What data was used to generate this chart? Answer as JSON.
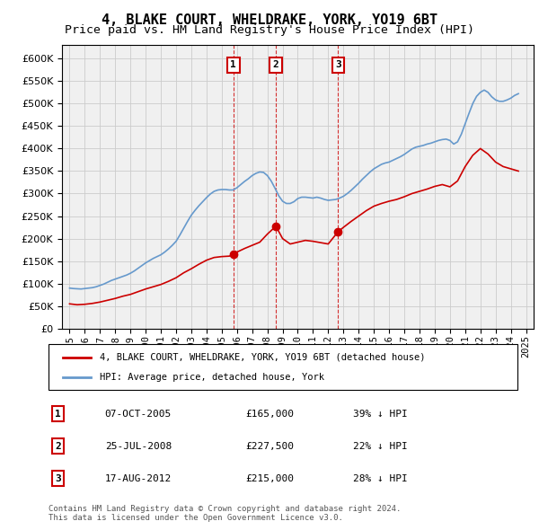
{
  "title": "4, BLAKE COURT, WHELDRAKE, YORK, YO19 6BT",
  "subtitle": "Price paid vs. HM Land Registry's House Price Index (HPI)",
  "title_fontsize": 11,
  "subtitle_fontsize": 9.5,
  "property_label": "4, BLAKE COURT, WHELDRAKE, YORK, YO19 6BT (detached house)",
  "hpi_label": "HPI: Average price, detached house, York",
  "property_color": "#cc0000",
  "hpi_color": "#6699cc",
  "background_color": "#ffffff",
  "grid_color": "#cccccc",
  "xlim_start": 1994.5,
  "xlim_end": 2025.5,
  "ylim_min": 0,
  "ylim_max": 630000,
  "transactions": [
    {
      "num": 1,
      "date": "07-OCT-2005",
      "year": 2005.77,
      "price": 165000,
      "pct": "39%",
      "dir": "↓"
    },
    {
      "num": 2,
      "date": "25-JUL-2008",
      "year": 2008.56,
      "price": 227500,
      "pct": "22%",
      "dir": "↓"
    },
    {
      "num": 3,
      "date": "17-AUG-2012",
      "year": 2012.64,
      "price": 215000,
      "pct": "28%",
      "dir": "↓"
    }
  ],
  "footnote1": "Contains HM Land Registry data © Crown copyright and database right 2024.",
  "footnote2": "This data is licensed under the Open Government Licence v3.0.",
  "hpi_data": {
    "years": [
      1995.0,
      1995.25,
      1995.5,
      1995.75,
      1996.0,
      1996.25,
      1996.5,
      1996.75,
      1997.0,
      1997.25,
      1997.5,
      1997.75,
      1998.0,
      1998.25,
      1998.5,
      1998.75,
      1999.0,
      1999.25,
      1999.5,
      1999.75,
      2000.0,
      2000.25,
      2000.5,
      2000.75,
      2001.0,
      2001.25,
      2001.5,
      2001.75,
      2002.0,
      2002.25,
      2002.5,
      2002.75,
      2003.0,
      2003.25,
      2003.5,
      2003.75,
      2004.0,
      2004.25,
      2004.5,
      2004.75,
      2005.0,
      2005.25,
      2005.5,
      2005.75,
      2006.0,
      2006.25,
      2006.5,
      2006.75,
      2007.0,
      2007.25,
      2007.5,
      2007.75,
      2008.0,
      2008.25,
      2008.5,
      2008.75,
      2009.0,
      2009.25,
      2009.5,
      2009.75,
      2010.0,
      2010.25,
      2010.5,
      2010.75,
      2011.0,
      2011.25,
      2011.5,
      2011.75,
      2012.0,
      2012.25,
      2012.5,
      2012.75,
      2013.0,
      2013.25,
      2013.5,
      2013.75,
      2014.0,
      2014.25,
      2014.5,
      2014.75,
      2015.0,
      2015.25,
      2015.5,
      2015.75,
      2016.0,
      2016.25,
      2016.5,
      2016.75,
      2017.0,
      2017.25,
      2017.5,
      2017.75,
      2018.0,
      2018.25,
      2018.5,
      2018.75,
      2019.0,
      2019.25,
      2019.5,
      2019.75,
      2020.0,
      2020.25,
      2020.5,
      2020.75,
      2021.0,
      2021.25,
      2021.5,
      2021.75,
      2022.0,
      2022.25,
      2022.5,
      2022.75,
      2023.0,
      2023.25,
      2023.5,
      2023.75,
      2024.0,
      2024.25,
      2024.5
    ],
    "values": [
      90000,
      89000,
      88500,
      88000,
      89000,
      90000,
      91000,
      93000,
      96000,
      99000,
      103000,
      107000,
      110000,
      113000,
      116000,
      119000,
      123000,
      128000,
      134000,
      140000,
      146000,
      151000,
      156000,
      160000,
      164000,
      170000,
      177000,
      185000,
      194000,
      208000,
      223000,
      238000,
      252000,
      263000,
      273000,
      282000,
      291000,
      299000,
      305000,
      308000,
      309000,
      309000,
      308000,
      308000,
      313000,
      320000,
      327000,
      333000,
      340000,
      345000,
      348000,
      347000,
      340000,
      328000,
      312000,
      295000,
      283000,
      278000,
      278000,
      282000,
      289000,
      292000,
      292000,
      291000,
      290000,
      292000,
      290000,
      287000,
      285000,
      286000,
      287000,
      290000,
      294000,
      300000,
      307000,
      315000,
      323000,
      332000,
      340000,
      348000,
      355000,
      360000,
      365000,
      368000,
      370000,
      374000,
      378000,
      382000,
      387000,
      393000,
      399000,
      403000,
      405000,
      407000,
      410000,
      412000,
      415000,
      418000,
      420000,
      421000,
      418000,
      410000,
      415000,
      432000,
      455000,
      478000,
      500000,
      516000,
      525000,
      530000,
      525000,
      515000,
      508000,
      505000,
      505000,
      508000,
      512000,
      518000,
      522000
    ]
  },
  "property_data": {
    "years": [
      1995.0,
      1995.5,
      1996.0,
      1996.5,
      1997.0,
      1997.5,
      1998.0,
      1998.5,
      1999.0,
      1999.5,
      2000.0,
      2000.5,
      2001.0,
      2001.5,
      2002.0,
      2002.5,
      2003.0,
      2003.5,
      2004.0,
      2004.5,
      2005.0,
      2005.5,
      2005.77,
      2006.0,
      2006.5,
      2007.0,
      2007.5,
      2008.0,
      2008.56,
      2009.0,
      2009.5,
      2010.0,
      2010.5,
      2011.0,
      2011.5,
      2012.0,
      2012.64,
      2013.0,
      2013.5,
      2014.0,
      2014.5,
      2015.0,
      2015.5,
      2016.0,
      2016.5,
      2017.0,
      2017.5,
      2018.0,
      2018.5,
      2019.0,
      2019.5,
      2020.0,
      2020.5,
      2021.0,
      2021.5,
      2022.0,
      2022.5,
      2023.0,
      2023.5,
      2024.0,
      2024.5
    ],
    "values": [
      55000,
      53000,
      54000,
      56000,
      59000,
      63000,
      67000,
      72000,
      76000,
      82000,
      88000,
      93000,
      98000,
      105000,
      113000,
      124000,
      133000,
      143000,
      152000,
      158000,
      160000,
      161000,
      165000,
      170000,
      178000,
      185000,
      192000,
      210000,
      227500,
      200000,
      188000,
      192000,
      196000,
      194000,
      191000,
      188000,
      215000,
      225000,
      238000,
      250000,
      262000,
      272000,
      278000,
      283000,
      287000,
      293000,
      300000,
      305000,
      310000,
      316000,
      320000,
      315000,
      328000,
      360000,
      385000,
      400000,
      388000,
      370000,
      360000,
      355000,
      350000
    ]
  }
}
